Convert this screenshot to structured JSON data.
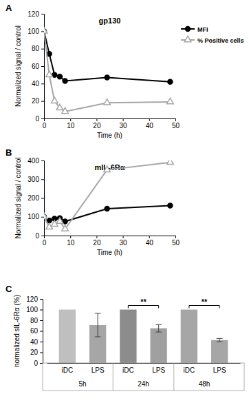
{
  "chart_data": [
    {
      "panel": "A",
      "type": "line",
      "title": "gp130",
      "x_label": "Time (h)",
      "y_label": "Normalized signal / control",
      "x": [
        0,
        2,
        4,
        6,
        8,
        24,
        48
      ],
      "series": [
        {
          "name": "MFI",
          "color": "#000000",
          "marker": "circle",
          "values": [
            100,
            74,
            50,
            48,
            43,
            47,
            42
          ]
        },
        {
          "name": "% Positive cells",
          "color": "#a6a6a6",
          "marker": "triangle-open",
          "values": [
            100,
            50,
            20,
            12,
            8,
            18,
            19
          ]
        }
      ],
      "xlim": [
        0,
        50
      ],
      "xticks": [
        0,
        10,
        20,
        30,
        40,
        50
      ],
      "ylim": [
        0,
        120
      ],
      "yticks": [
        0,
        20,
        40,
        60,
        80,
        100,
        120
      ],
      "legend": "upper right"
    },
    {
      "panel": "B",
      "type": "line",
      "title": "mIL-6Rα",
      "x_label": "Time (h)",
      "y_label": "Normalized signal / control",
      "x": [
        0,
        2,
        4,
        6,
        8,
        24,
        48
      ],
      "series": [
        {
          "color": "#000000",
          "marker": "circle",
          "values": [
            100,
            80,
            90,
            93,
            75,
            143,
            160
          ]
        },
        {
          "color": "#a6a6a6",
          "marker": "triangle-open",
          "values": [
            100,
            45,
            60,
            75,
            35,
            350,
            390
          ]
        }
      ],
      "xlim": [
        0,
        50
      ],
      "xticks": [
        0,
        10,
        20,
        30,
        40,
        50
      ],
      "ylim": [
        0,
        400
      ],
      "yticks": [
        0,
        100,
        200,
        300,
        400
      ]
    },
    {
      "panel": "C",
      "type": "bar",
      "y_label": "normalized sIL-6Rα (%)",
      "categories": [
        "iDC",
        "LPS",
        "iDC",
        "LPS",
        "iDC",
        "LPS"
      ],
      "group_labels": [
        "5h",
        "24h",
        "48h"
      ],
      "values": [
        100,
        71,
        100,
        65,
        100,
        43
      ],
      "errors": [
        null,
        22,
        null,
        7,
        null,
        3
      ],
      "colors": [
        "#bfbfbf",
        "#a6a6a6",
        "#8c8c8c",
        "#a0a0a0",
        "#a6a6a6",
        "#a6a6a6"
      ],
      "ylim": [
        0,
        120
      ],
      "yticks": [
        0,
        20,
        40,
        60,
        80,
        100,
        120
      ],
      "annotations": [
        {
          "text": "**",
          "categories": [
            2,
            3
          ]
        },
        {
          "text": "**",
          "categories": [
            4,
            5
          ]
        }
      ]
    }
  ]
}
